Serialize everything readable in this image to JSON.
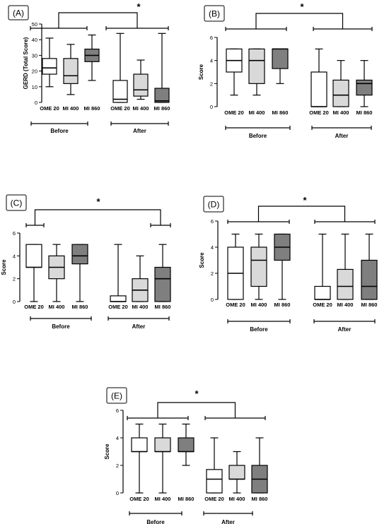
{
  "chart_data": [
    {
      "type": "boxplot",
      "panel_label": "(A)",
      "ylabel": "GERD (Total Score)",
      "ylim": [
        0,
        50
      ],
      "yticks": [
        0,
        10,
        20,
        30,
        40,
        50
      ],
      "categories": [
        "OME 20",
        "MI 400",
        "MI 860",
        "OME 20",
        "MI 400",
        "MI 860"
      ],
      "groups": [
        "Before",
        "After"
      ],
      "significance": "*",
      "boxes": [
        {
          "min": 10,
          "q1": 18,
          "median": 22,
          "q3": 28,
          "max": 41,
          "fill": "#ffffff"
        },
        {
          "min": 5,
          "q1": 12,
          "median": 17,
          "q3": 28,
          "max": 37,
          "fill": "#d9d9d9"
        },
        {
          "min": 14,
          "q1": 26,
          "median": 30,
          "q3": 34,
          "max": 43,
          "fill": "#7f7f7f"
        },
        {
          "min": 0,
          "q1": 0,
          "median": 2,
          "q3": 14,
          "max": 44,
          "fill": "#ffffff"
        },
        {
          "min": 2,
          "q1": 4,
          "median": 8,
          "q3": 18,
          "max": 27,
          "fill": "#d9d9d9"
        },
        {
          "min": 0,
          "q1": 0,
          "median": 1,
          "q3": 9,
          "max": 44,
          "fill": "#7f7f7f"
        }
      ]
    },
    {
      "type": "boxplot",
      "panel_label": "(B)",
      "ylabel": "Score",
      "ylim": [
        0,
        6
      ],
      "yticks": [
        0,
        2,
        4,
        6
      ],
      "categories": [
        "OME 20",
        "MI 400",
        "MI 860",
        "OME 20",
        "MI 400",
        "MI 860"
      ],
      "groups": [
        "Before",
        "After"
      ],
      "significance": "*",
      "boxes": [
        {
          "min": 1,
          "q1": 3,
          "median": 4,
          "q3": 5,
          "max": 5,
          "fill": "#ffffff"
        },
        {
          "min": 1,
          "q1": 2,
          "median": 4,
          "q3": 5,
          "max": 5,
          "fill": "#d9d9d9"
        },
        {
          "min": 2,
          "q1": 3.3,
          "median": 5,
          "q3": 5,
          "max": 5,
          "fill": "#7f7f7f"
        },
        {
          "min": 0,
          "q1": 0,
          "median": 0,
          "q3": 3,
          "max": 5,
          "fill": "#ffffff"
        },
        {
          "min": 0,
          "q1": 0,
          "median": 1,
          "q3": 2.3,
          "max": 4,
          "fill": "#d9d9d9"
        },
        {
          "min": 0,
          "q1": 1,
          "median": 2,
          "q3": 2.3,
          "max": 4,
          "fill": "#7f7f7f"
        }
      ]
    },
    {
      "type": "boxplot",
      "panel_label": "(C)",
      "ylabel": "Score",
      "ylim": [
        0,
        6
      ],
      "yticks": [
        0,
        2,
        4,
        6
      ],
      "categories": [
        "OME 20",
        "MI 400",
        "MI 860",
        "OME 20",
        "MI 400",
        "MI 860"
      ],
      "groups": [
        "Before",
        "After"
      ],
      "significance": "*",
      "boxes": [
        {
          "min": 0,
          "q1": 3,
          "median": 3,
          "q3": 5,
          "max": 5,
          "fill": "#ffffff"
        },
        {
          "min": 0,
          "q1": 2,
          "median": 3,
          "q3": 4,
          "max": 5,
          "fill": "#d9d9d9"
        },
        {
          "min": 0,
          "q1": 3.3,
          "median": 4,
          "q3": 5,
          "max": 5,
          "fill": "#7f7f7f"
        },
        {
          "min": 0,
          "q1": 0,
          "median": 0,
          "q3": 0.5,
          "max": 5,
          "fill": "#ffffff"
        },
        {
          "min": 0,
          "q1": 0,
          "median": 1,
          "q3": 2,
          "max": 4,
          "fill": "#d9d9d9"
        },
        {
          "min": 0,
          "q1": 0,
          "median": 2,
          "q3": 3,
          "max": 5,
          "fill": "#7f7f7f"
        }
      ]
    },
    {
      "type": "boxplot",
      "panel_label": "(D)",
      "ylabel": "Score",
      "ylim": [
        0,
        6
      ],
      "yticks": [
        0,
        2,
        4,
        6
      ],
      "categories": [
        "OME 20",
        "MI 400",
        "MI 860",
        "OME 20",
        "MI 400",
        "MI 860"
      ],
      "groups": [
        "Before",
        "After"
      ],
      "significance": "*",
      "boxes": [
        {
          "min": 0,
          "q1": 0,
          "median": 2,
          "q3": 4,
          "max": 5,
          "fill": "#ffffff"
        },
        {
          "min": 0,
          "q1": 1,
          "median": 3,
          "q3": 4,
          "max": 5,
          "fill": "#d9d9d9"
        },
        {
          "min": 0,
          "q1": 3,
          "median": 4,
          "q3": 5,
          "max": 5,
          "fill": "#7f7f7f"
        },
        {
          "min": 0,
          "q1": 0,
          "median": 0,
          "q3": 1,
          "max": 5,
          "fill": "#ffffff"
        },
        {
          "min": 0,
          "q1": 0,
          "median": 1,
          "q3": 2.3,
          "max": 5,
          "fill": "#d9d9d9"
        },
        {
          "min": 0,
          "q1": 0,
          "median": 1,
          "q3": 3,
          "max": 5,
          "fill": "#7f7f7f"
        }
      ]
    },
    {
      "type": "boxplot",
      "panel_label": "(E)",
      "ylabel": "Score",
      "ylim": [
        0,
        6
      ],
      "yticks": [
        0,
        2,
        4,
        6
      ],
      "categories": [
        "OME 20",
        "MI 400",
        "MI 860",
        "OME 20",
        "MI 400",
        "MI 860"
      ],
      "groups": [
        "Before",
        "After"
      ],
      "significance": "*",
      "boxes": [
        {
          "min": 0,
          "q1": 3,
          "median": 3,
          "q3": 4,
          "max": 5,
          "fill": "#ffffff"
        },
        {
          "min": 0,
          "q1": 3,
          "median": 3,
          "q3": 4,
          "max": 5,
          "fill": "#d9d9d9"
        },
        {
          "min": 2,
          "q1": 3,
          "median": 3,
          "q3": 4,
          "max": 5,
          "fill": "#7f7f7f"
        },
        {
          "min": 0,
          "q1": 0,
          "median": 1,
          "q3": 1.7,
          "max": 4,
          "fill": "#ffffff"
        },
        {
          "min": 0,
          "q1": 1,
          "median": 1,
          "q3": 2,
          "max": 3,
          "fill": "#d9d9d9"
        },
        {
          "min": 0,
          "q1": 0,
          "median": 1,
          "q3": 2,
          "max": 4,
          "fill": "#7f7f7f"
        }
      ]
    }
  ]
}
